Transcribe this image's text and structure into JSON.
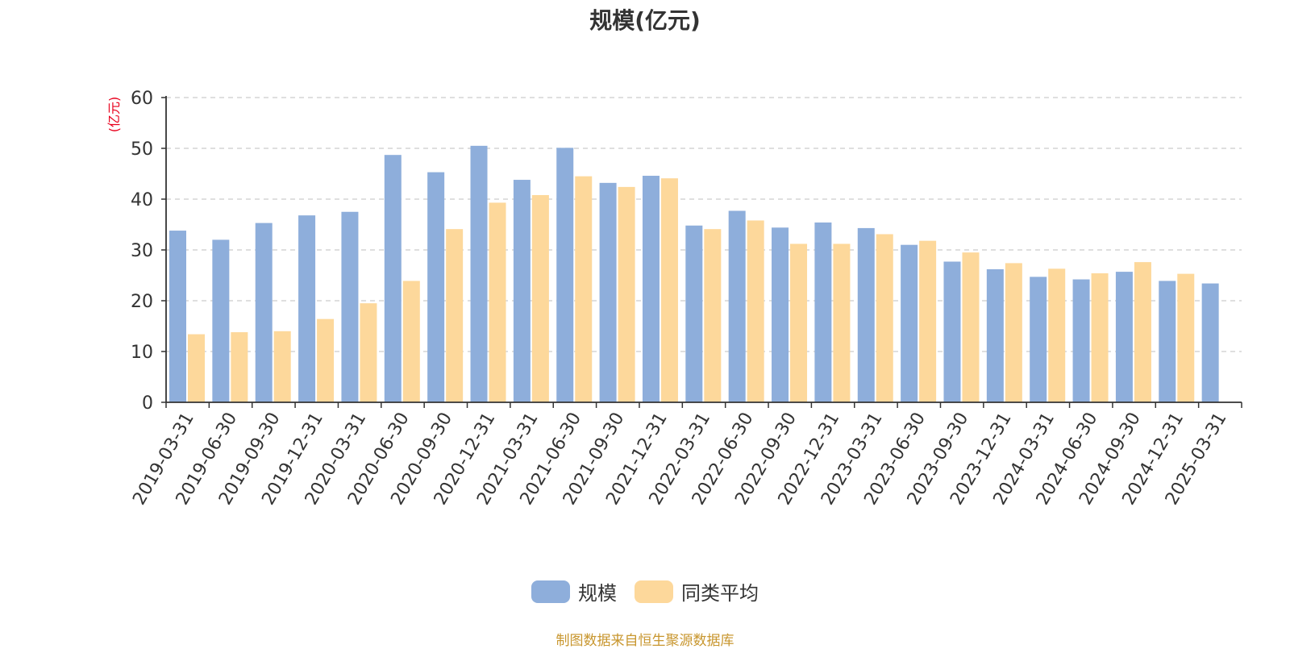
{
  "chart_data": {
    "type": "bar",
    "title": "规模(亿元)",
    "ylabel": "(亿元)",
    "xlabel": "",
    "ylim": [
      0,
      60
    ],
    "yticks": [
      0,
      10,
      20,
      30,
      40,
      50,
      60
    ],
    "grid": "horizontal-dashed",
    "legend_position": "bottom-center",
    "categories": [
      "2019-03-31",
      "2019-06-30",
      "2019-09-30",
      "2019-12-31",
      "2020-03-31",
      "2020-06-30",
      "2020-09-30",
      "2020-12-31",
      "2021-03-31",
      "2021-06-30",
      "2021-09-30",
      "2021-12-31",
      "2022-03-31",
      "2022-06-30",
      "2022-09-30",
      "2022-12-31",
      "2023-03-31",
      "2023-06-30",
      "2023-09-30",
      "2023-12-31",
      "2024-03-31",
      "2024-06-30",
      "2024-09-30",
      "2024-12-31",
      "2025-03-31"
    ],
    "series": [
      {
        "name": "规模",
        "color": "#8eaedb",
        "values": [
          33.8,
          32.0,
          35.3,
          36.8,
          37.5,
          48.7,
          45.3,
          50.5,
          43.8,
          50.1,
          43.2,
          44.6,
          34.8,
          37.7,
          34.4,
          35.4,
          34.3,
          31.0,
          27.7,
          26.2,
          24.7,
          24.2,
          25.7,
          23.9,
          23.4
        ]
      },
      {
        "name": "同类平均",
        "color": "#fdd89b",
        "values": [
          13.4,
          13.8,
          14.0,
          16.4,
          19.5,
          23.9,
          34.1,
          39.3,
          40.8,
          44.5,
          42.4,
          44.1,
          34.1,
          35.8,
          31.2,
          31.2,
          33.1,
          31.8,
          29.5,
          27.4,
          26.3,
          25.4,
          27.6,
          25.3,
          null
        ]
      }
    ]
  },
  "source_note": "制图数据来自恒生聚源数据库"
}
